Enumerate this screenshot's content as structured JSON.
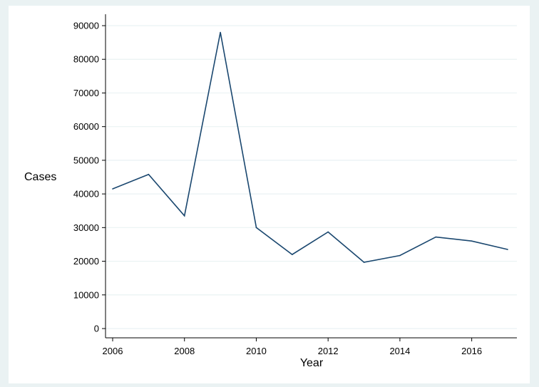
{
  "chart_data": {
    "type": "line",
    "xlabel": "Year",
    "ylabel": "Cases",
    "x": [
      2006,
      2007,
      2008,
      2009,
      2010,
      2011,
      2012,
      2013,
      2014,
      2015,
      2016,
      2017
    ],
    "series": [
      {
        "values": [
          41500,
          45800,
          33500,
          88000,
          30000,
          22000,
          28700,
          19700,
          21700,
          27200,
          26000,
          23500
        ]
      }
    ],
    "xlim": [
      2006,
      2017
    ],
    "ylim": [
      0,
      90000
    ],
    "xticks": [
      "2006",
      "2008",
      "2010",
      "2012",
      "2014",
      "2016"
    ],
    "yticks": [
      "0",
      "10000",
      "20000",
      "30000",
      "40000",
      "50000",
      "60000",
      "70000",
      "80000",
      "90000"
    ],
    "grid": true,
    "line_color": "#1a476f",
    "background": "#eaf2f3",
    "plot_background": "#ffffff"
  }
}
